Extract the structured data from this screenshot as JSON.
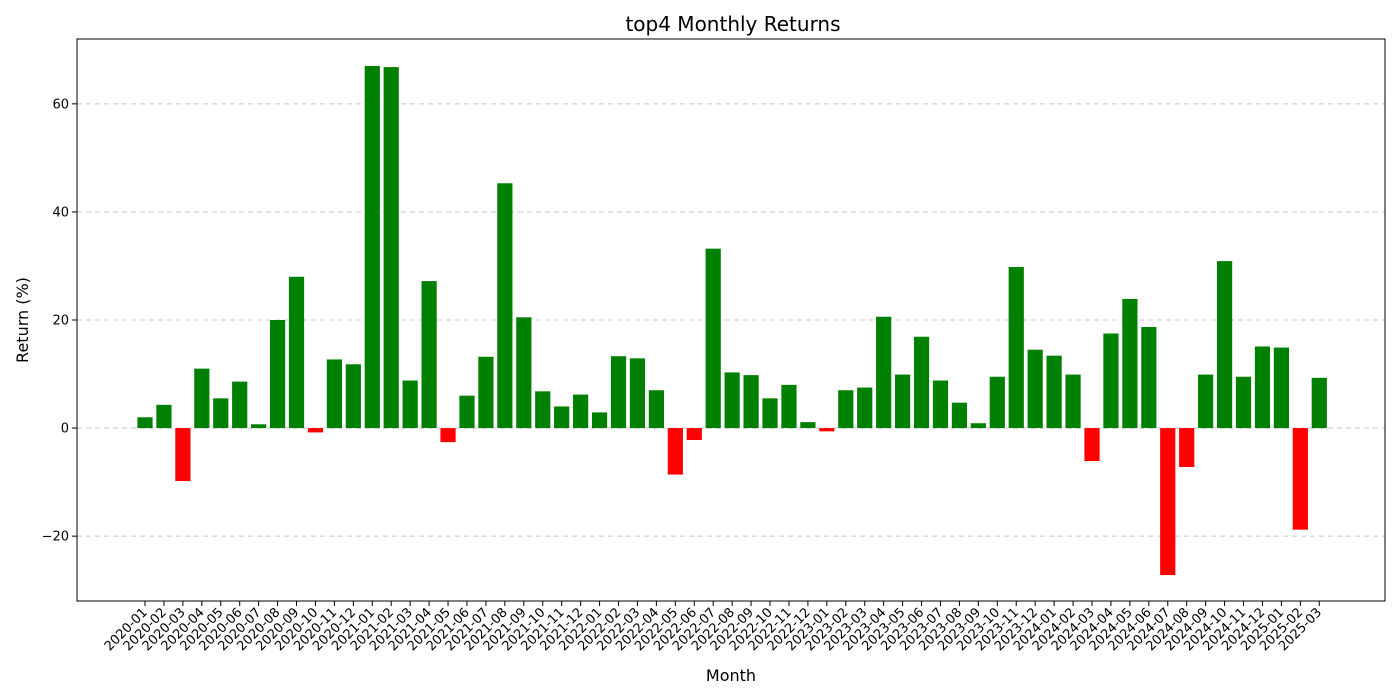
{
  "chart_data": {
    "type": "bar",
    "title": "top4 Monthly Returns",
    "xlabel": "Month",
    "ylabel": "Return (%)",
    "ylim": [
      -32,
      72
    ],
    "yticks": [
      -20,
      0,
      20,
      40,
      60
    ],
    "grid": "y-dashed",
    "colors": {
      "positive": "#008000",
      "negative": "#ff0000",
      "grid": "#c8c8c8"
    },
    "categories": [
      "2020-01",
      "2020-02",
      "2020-03",
      "2020-04",
      "2020-05",
      "2020-06",
      "2020-07",
      "2020-08",
      "2020-09",
      "2020-10",
      "2020-11",
      "2020-12",
      "2021-01",
      "2021-02",
      "2021-03",
      "2021-04",
      "2021-05",
      "2021-06",
      "2021-07",
      "2021-08",
      "2021-09",
      "2021-10",
      "2021-11",
      "2021-12",
      "2022-01",
      "2022-02",
      "2022-03",
      "2022-04",
      "2022-05",
      "2022-06",
      "2022-07",
      "2022-08",
      "2022-09",
      "2022-10",
      "2022-11",
      "2022-12",
      "2023-01",
      "2023-02",
      "2023-03",
      "2023-04",
      "2023-05",
      "2023-06",
      "2023-07",
      "2023-08",
      "2023-09",
      "2023-10",
      "2023-11",
      "2023-12",
      "2024-01",
      "2024-02",
      "2024-03",
      "2024-04",
      "2024-05",
      "2024-06",
      "2024-07",
      "2024-08",
      "2024-09",
      "2024-10",
      "2024-11",
      "2024-12",
      "2025-01",
      "2025-02",
      "2025-03"
    ],
    "values": [
      2.0,
      4.3,
      -9.8,
      11.0,
      5.5,
      8.6,
      0.7,
      20.0,
      28.0,
      -0.8,
      12.7,
      11.8,
      67.0,
      66.8,
      8.8,
      27.2,
      -2.6,
      6.0,
      13.2,
      45.3,
      20.5,
      6.8,
      4.0,
      6.2,
      2.9,
      13.3,
      12.9,
      7.0,
      -8.6,
      -2.2,
      33.2,
      10.3,
      9.8,
      5.5,
      8.0,
      1.1,
      -0.6,
      7.0,
      7.5,
      20.6,
      9.9,
      16.9,
      8.8,
      4.7,
      0.9,
      9.5,
      29.8,
      14.5,
      13.4,
      9.9,
      -6.1,
      17.5,
      23.9,
      18.7,
      -27.2,
      -7.2,
      9.9,
      30.9,
      9.5,
      15.1,
      14.9,
      -18.8,
      9.3
    ]
  }
}
